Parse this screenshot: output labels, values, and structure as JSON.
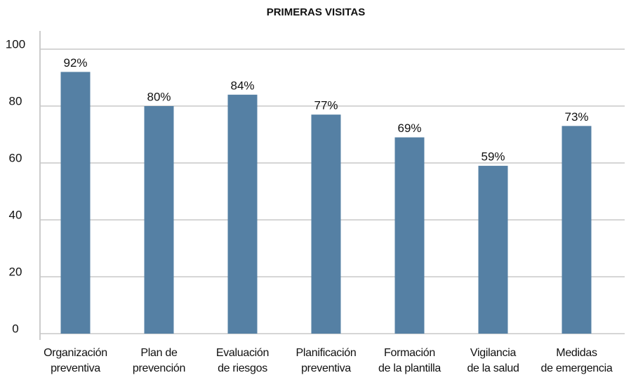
{
  "chart_data": {
    "type": "bar",
    "title": "PRIMERAS VISITAS",
    "categories": [
      "Organización\npreventiva",
      "Plan de\nprevención",
      "Evaluación\nde riesgos",
      "Planificación\npreventiva",
      "Formación\nde la plantilla",
      "Vigilancia\nde la salud",
      "Medidas\nde emergencia"
    ],
    "values": [
      92,
      80,
      84,
      77,
      69,
      59,
      73
    ],
    "value_labels": [
      "92%",
      "80%",
      "84%",
      "77%",
      "69%",
      "59%",
      "73%"
    ],
    "color": "#5580a4",
    "ylim": [
      0,
      100
    ],
    "yticks": [
      0,
      20,
      40,
      60,
      80,
      100
    ],
    "grid": true
  }
}
